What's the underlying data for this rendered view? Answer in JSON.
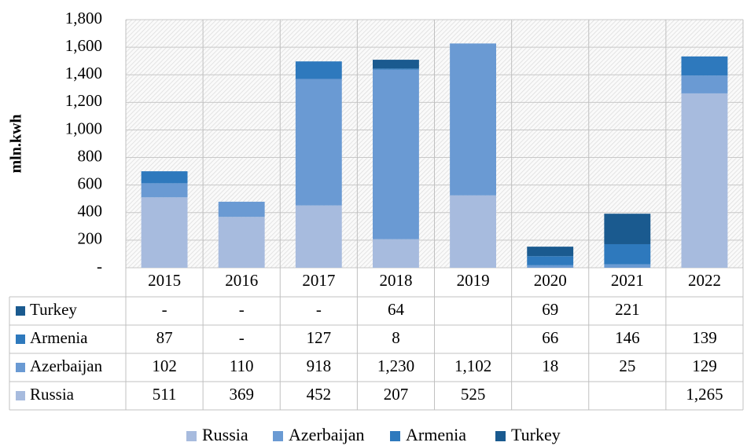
{
  "chart_data": {
    "type": "bar",
    "stacked": true,
    "y_label": "mln.kwh",
    "categories": [
      "2015",
      "2016",
      "2017",
      "2018",
      "2019",
      "2020",
      "2021",
      "2022"
    ],
    "series": [
      {
        "name": "Russia",
        "color": "#a7bbde",
        "values": [
          511,
          369,
          452,
          207,
          525,
          null,
          null,
          1265
        ],
        "value_labels": [
          "511",
          "369",
          "452",
          "207",
          "525",
          null,
          null,
          "1,265"
        ]
      },
      {
        "name": "Azerbaijan",
        "color": "#6a9ad3",
        "values": [
          102,
          110,
          918,
          1230,
          1102,
          18,
          25,
          129
        ],
        "value_labels": [
          "102",
          "110",
          "918",
          "1,230",
          "1,102",
          "18",
          "25",
          "129"
        ]
      },
      {
        "name": "Armenia",
        "color": "#2e79bd",
        "values": [
          87,
          0,
          127,
          8,
          null,
          66,
          146,
          139
        ],
        "value_labels": [
          "87",
          "-",
          "127",
          "8",
          null,
          "66",
          "146",
          "139"
        ]
      },
      {
        "name": "Turkey",
        "color": "#1a5a8f",
        "values": [
          0,
          0,
          0,
          64,
          null,
          69,
          221,
          null
        ],
        "value_labels": [
          "-",
          "-",
          "-",
          "64",
          null,
          "69",
          "221",
          null
        ]
      }
    ],
    "ylim": [
      0,
      1800
    ],
    "yticks": [
      {
        "value": 0,
        "label": "-"
      },
      200,
      400,
      600,
      800,
      {
        "value": 1000,
        "label": "1,000"
      },
      {
        "value": 1200,
        "label": "1,200"
      },
      {
        "value": 1400,
        "label": "1,400"
      },
      {
        "value": 1600,
        "label": "1,600"
      },
      {
        "value": 1800,
        "label": "1,800"
      }
    ],
    "grid": true,
    "legend": "bottom"
  }
}
